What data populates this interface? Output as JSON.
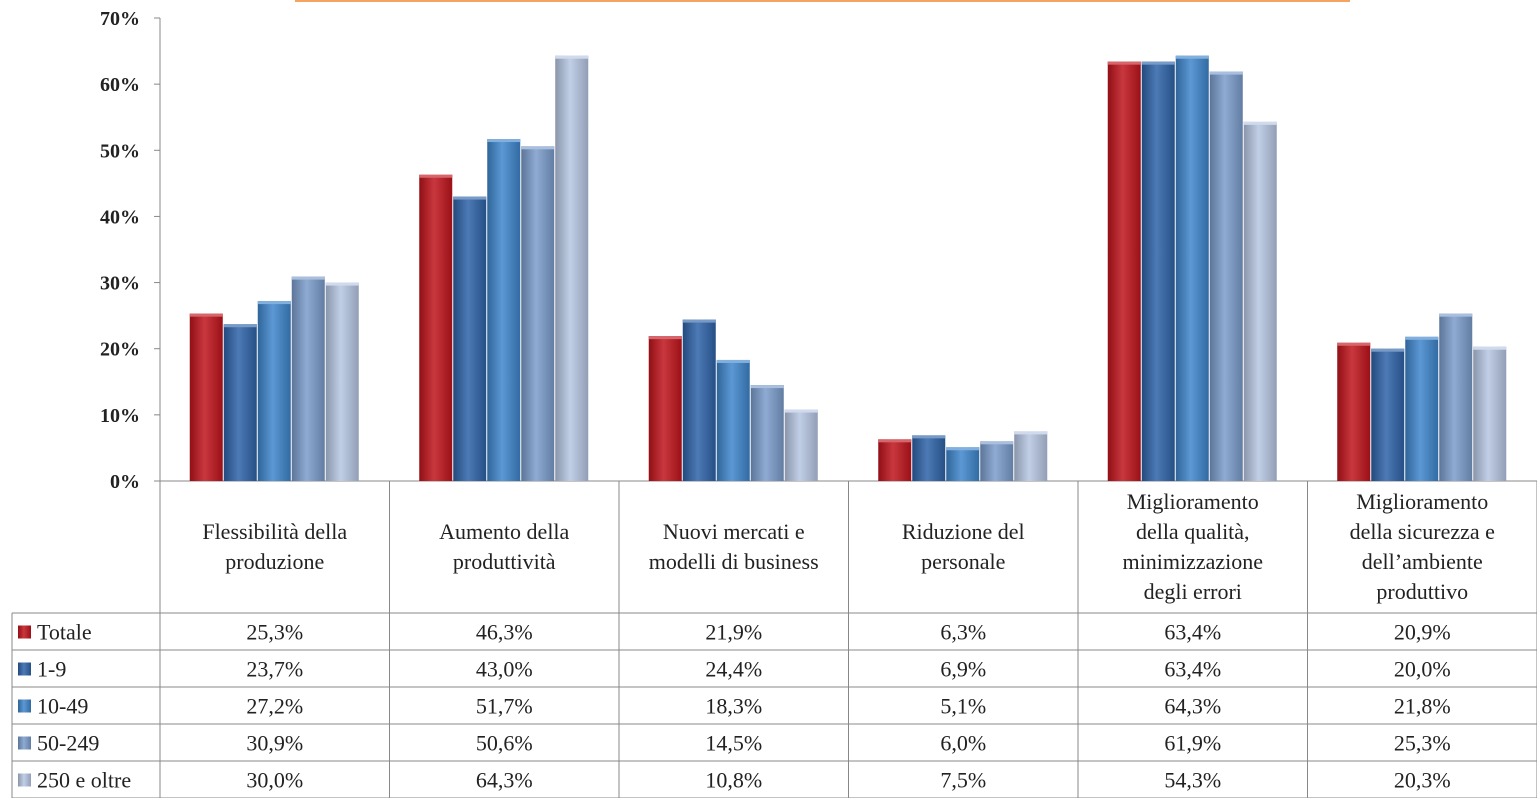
{
  "chart_data": {
    "type": "bar",
    "categories": [
      [
        "Flessibilità della",
        "produzione"
      ],
      [
        "Aumento della",
        "produttività"
      ],
      [
        "Nuovi mercati e",
        "modelli di business"
      ],
      [
        "Riduzione del",
        "personale"
      ],
      [
        "Miglioramento",
        "della qualità,",
        "minimizzazione",
        "degli errori"
      ],
      [
        "Miglioramento",
        "della sicurezza e",
        "dell’ambiente",
        "produttivo"
      ]
    ],
    "series": [
      {
        "name": "Totale",
        "color": "#c0141c",
        "values": [
          25.3,
          46.3,
          21.9,
          6.3,
          63.4,
          20.9
        ],
        "labels": [
          "25,3%",
          "46,3%",
          "21,9%",
          "6,3%",
          "63,4%",
          "20,9%"
        ]
      },
      {
        "name": "1-9",
        "color": "#2e63a8",
        "values": [
          23.7,
          43.0,
          24.4,
          6.9,
          63.4,
          20.0
        ],
        "labels": [
          "23,7%",
          "43,0%",
          "24,4%",
          "6,9%",
          "63,4%",
          "20,0%"
        ]
      },
      {
        "name": "10-49",
        "color": "#3f86cc",
        "values": [
          27.2,
          51.7,
          18.3,
          5.1,
          64.3,
          21.8
        ],
        "labels": [
          "27,2%",
          "51,7%",
          "18,3%",
          "5,1%",
          "64,3%",
          "21,8%"
        ]
      },
      {
        "name": "50-249",
        "color": "#7b9ccb",
        "values": [
          30.9,
          50.6,
          14.5,
          6.0,
          61.9,
          25.3
        ],
        "labels": [
          "30,9%",
          "50,6%",
          "14,5%",
          "6,0%",
          "61,9%",
          "25,3%"
        ]
      },
      {
        "name": "250 e oltre",
        "color": "#b6c6e2",
        "values": [
          30.0,
          64.3,
          10.8,
          7.5,
          54.3,
          20.3
        ],
        "labels": [
          "30,0%",
          "64,3%",
          "10,8%",
          "7,5%",
          "54,3%",
          "20,3%"
        ]
      }
    ],
    "y_ticks": [
      "0%",
      "10%",
      "20%",
      "30%",
      "40%",
      "50%",
      "60%",
      "70%"
    ],
    "ylim": [
      0,
      70
    ],
    "grid": false,
    "legend": "table"
  }
}
